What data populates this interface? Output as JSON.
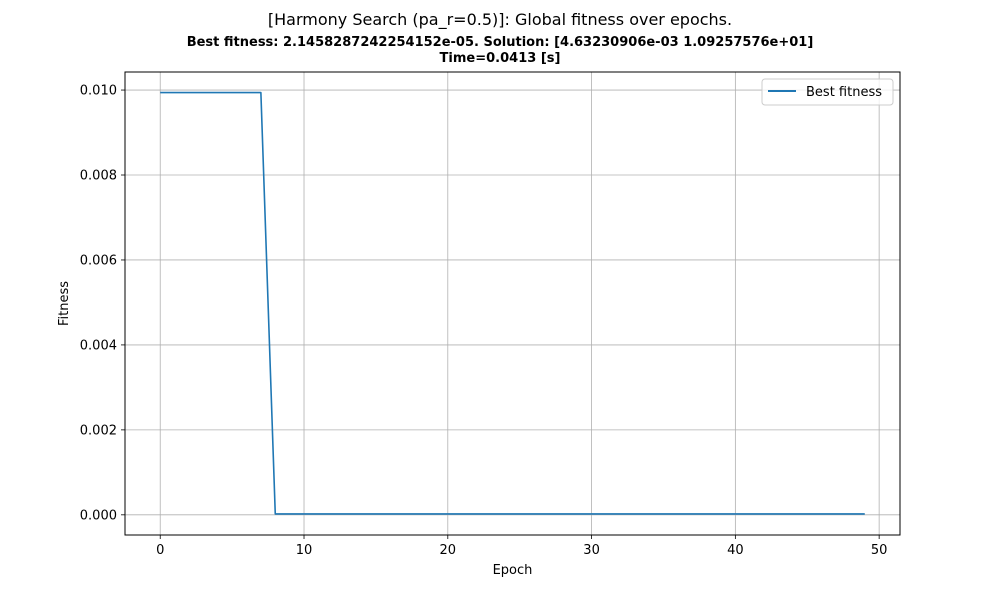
{
  "chart_data": {
    "type": "line",
    "title": "[Harmony Search (pa_r=0.5)]: Global fitness over epochs.",
    "subtitle_lines": [
      "Best fitness: 2.1458287242254152e-05. Solution: [4.63230906e-03 1.09257576e+01]",
      "Time=0.0413 [s]"
    ],
    "xlabel": "Epoch",
    "ylabel": "Fitness",
    "xlim": [
      -2.45,
      51.45
    ],
    "ylim": [
      -0.000475,
      0.010425
    ],
    "xticks": [
      0,
      10,
      20,
      30,
      40,
      50
    ],
    "yticks": [
      0.0,
      0.002,
      0.004,
      0.006,
      0.008,
      0.01
    ],
    "ytick_labels": [
      "0.000",
      "0.002",
      "0.004",
      "0.006",
      "0.008",
      "0.010"
    ],
    "grid": true,
    "legend_position": "top-right",
    "series": [
      {
        "name": "Best fitness",
        "color": "#1f77b4",
        "x": [
          0,
          7,
          8,
          49
        ],
        "y": [
          0.00994,
          0.00994,
          2.15e-05,
          2.15e-05
        ]
      }
    ]
  }
}
